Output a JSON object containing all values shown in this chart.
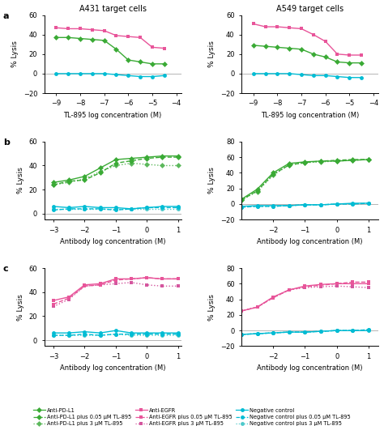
{
  "row_a_left": {
    "title": "A431 target cells",
    "xlabel": "TL-895 log concentration (M)",
    "ylabel": "% Lysis",
    "xlim": [
      -9.5,
      -3.8
    ],
    "ylim": [
      -20,
      60
    ],
    "xticks": [
      -9,
      -8,
      -7,
      -6,
      -5,
      -4
    ],
    "yticks": [
      -20,
      0,
      20,
      40,
      60
    ],
    "series": {
      "anti_egfr": {
        "x": [
          -9,
          -8.5,
          -8,
          -7.5,
          -7,
          -6.5,
          -6,
          -5.5,
          -5,
          -4.5
        ],
        "y": [
          47,
          46,
          46,
          45,
          44,
          39,
          38,
          37,
          27,
          26
        ],
        "color": "#e8559a",
        "marker": "s",
        "linestyle": "-"
      },
      "anti_pdl1": {
        "x": [
          -9,
          -8.5,
          -8,
          -7.5,
          -7,
          -6.5,
          -6,
          -5.5,
          -5,
          -4.5
        ],
        "y": [
          37,
          37,
          36,
          35,
          34,
          25,
          14,
          12,
          10,
          10
        ],
        "color": "#3aaa35",
        "marker": "D",
        "linestyle": "-"
      },
      "neg_ctrl": {
        "x": [
          -9,
          -8.5,
          -8,
          -7.5,
          -7,
          -6.5,
          -6,
          -5.5,
          -5,
          -4.5
        ],
        "y": [
          0,
          0,
          0,
          0,
          0,
          -1,
          -2,
          -3,
          -3,
          -2
        ],
        "color": "#00bcd4",
        "marker": "o",
        "linestyle": "-"
      }
    }
  },
  "row_a_right": {
    "title": "A549 target cells",
    "xlabel": "TL-895 log concentration (M)",
    "ylabel": "% Lysis",
    "xlim": [
      -9.5,
      -3.8
    ],
    "ylim": [
      -20,
      60
    ],
    "xticks": [
      -9,
      -8,
      -7,
      -6,
      -5,
      -4
    ],
    "yticks": [
      -20,
      0,
      20,
      40,
      60
    ],
    "series": {
      "anti_egfr": {
        "x": [
          -9,
          -8.5,
          -8,
          -7.5,
          -7,
          -6.5,
          -6,
          -5.5,
          -5,
          -4.5
        ],
        "y": [
          51,
          48,
          48,
          47,
          46,
          40,
          33,
          20,
          19,
          19
        ],
        "color": "#e8559a",
        "marker": "s",
        "linestyle": "-"
      },
      "anti_pdl1": {
        "x": [
          -9,
          -8.5,
          -8,
          -7.5,
          -7,
          -6.5,
          -6,
          -5.5,
          -5,
          -4.5
        ],
        "y": [
          29,
          28,
          27,
          26,
          25,
          20,
          17,
          12,
          11,
          11
        ],
        "color": "#3aaa35",
        "marker": "D",
        "linestyle": "-"
      },
      "neg_ctrl": {
        "x": [
          -9,
          -8.5,
          -8,
          -7.5,
          -7,
          -6.5,
          -6,
          -5.5,
          -5,
          -4.5
        ],
        "y": [
          0,
          0,
          0,
          0,
          -1,
          -2,
          -2,
          -3,
          -4,
          -4
        ],
        "color": "#00bcd4",
        "marker": "o",
        "linestyle": "-"
      }
    }
  },
  "row_b_left": {
    "xlabel": "Antibody log concentration (M)",
    "ylabel": "% Lysis",
    "xlim": [
      -3.3,
      1.1
    ],
    "ylim": [
      -5,
      60
    ],
    "xticks": [
      -3,
      -2,
      -1,
      0,
      1
    ],
    "yticks": [
      0,
      20,
      40,
      60
    ],
    "series": {
      "anti_pdl1": {
        "x": [
          -3,
          -2.5,
          -2,
          -1.5,
          -1,
          -0.5,
          0,
          0.5,
          1
        ],
        "y": [
          26,
          28,
          31,
          38,
          45,
          46,
          47,
          48,
          48
        ],
        "color": "#3aaa35",
        "marker": "D",
        "linestyle": "-"
      },
      "anti_pdl1_005": {
        "x": [
          -3,
          -2.5,
          -2,
          -1.5,
          -1,
          -0.5,
          0,
          0.5,
          1
        ],
        "y": [
          24,
          27,
          28,
          34,
          42,
          44,
          46,
          47,
          47
        ],
        "color": "#3aaa35",
        "marker": "D",
        "linestyle": "--"
      },
      "anti_pdl1_3": {
        "x": [
          -3,
          -2.5,
          -2,
          -1.5,
          -1,
          -0.5,
          0,
          0.5,
          1
        ],
        "y": [
          24,
          26,
          29,
          35,
          40,
          42,
          41,
          40,
          40
        ],
        "color": "#5cb85c",
        "marker": "D",
        "linestyle": ":"
      },
      "neg_ctrl": {
        "x": [
          -3,
          -2.5,
          -2,
          -1.5,
          -1,
          -0.5,
          0,
          0.5,
          1
        ],
        "y": [
          6,
          5,
          6,
          5,
          5,
          4,
          5,
          6,
          6
        ],
        "color": "#00bcd4",
        "marker": "o",
        "linestyle": "-"
      },
      "neg_ctrl_005": {
        "x": [
          -3,
          -2.5,
          -2,
          -1.5,
          -1,
          -0.5,
          0,
          0.5,
          1
        ],
        "y": [
          3,
          4,
          4,
          4,
          3,
          4,
          5,
          5,
          5
        ],
        "color": "#00bcd4",
        "marker": "o",
        "linestyle": "--"
      },
      "neg_ctrl_3": {
        "x": [
          -3,
          -2.5,
          -2,
          -1.5,
          -1,
          -0.5,
          0,
          0.5,
          1
        ],
        "y": [
          4,
          4,
          4,
          4,
          4,
          4,
          4,
          4,
          4
        ],
        "color": "#4ec9cb",
        "marker": "o",
        "linestyle": ":"
      }
    }
  },
  "row_b_right": {
    "xlabel": "Antibody log concentration (M)",
    "ylabel": "% Lysis",
    "xlim": [
      -3.0,
      1.3
    ],
    "ylim": [
      -20,
      80
    ],
    "xticks": [
      -2,
      -1,
      0,
      1
    ],
    "yticks": [
      -20,
      0,
      20,
      40,
      60,
      80
    ],
    "series": {
      "anti_pdl1": {
        "x": [
          -3,
          -2.5,
          -2,
          -1.5,
          -1,
          -0.5,
          0,
          0.5,
          1
        ],
        "y": [
          6,
          19,
          40,
          52,
          54,
          55,
          55,
          56,
          57
        ],
        "color": "#3aaa35",
        "marker": "D",
        "linestyle": "-"
      },
      "anti_pdl1_005": {
        "x": [
          -3,
          -2.5,
          -2,
          -1.5,
          -1,
          -0.5,
          0,
          0.5,
          1
        ],
        "y": [
          5,
          17,
          38,
          50,
          53,
          55,
          56,
          57,
          57
        ],
        "color": "#3aaa35",
        "marker": "D",
        "linestyle": "--"
      },
      "anti_pdl1_3": {
        "x": [
          -3,
          -2.5,
          -2,
          -1.5,
          -1,
          -0.5,
          0,
          0.5,
          1
        ],
        "y": [
          5,
          16,
          37,
          50,
          53,
          54,
          55,
          56,
          57
        ],
        "color": "#5cb85c",
        "marker": "D",
        "linestyle": ":"
      },
      "neg_ctrl": {
        "x": [
          -3,
          -2.5,
          -2,
          -1.5,
          -1,
          -0.5,
          0,
          0.5,
          1
        ],
        "y": [
          -3,
          -2,
          -2,
          -2,
          -1,
          -1,
          0,
          1,
          1
        ],
        "color": "#00bcd4",
        "marker": "o",
        "linestyle": "-"
      },
      "neg_ctrl_005": {
        "x": [
          -3,
          -2.5,
          -2,
          -1.5,
          -1,
          -0.5,
          0,
          0.5,
          1
        ],
        "y": [
          -4,
          -3,
          -3,
          -2,
          -1,
          -1,
          0,
          0,
          1
        ],
        "color": "#00bcd4",
        "marker": "o",
        "linestyle": "--"
      },
      "neg_ctrl_3": {
        "x": [
          -3,
          -2.5,
          -2,
          -1.5,
          -1,
          -0.5,
          0,
          0.5,
          1
        ],
        "y": [
          -4,
          -3,
          -3,
          -2,
          -1,
          -1,
          0,
          0,
          1
        ],
        "color": "#4ec9cb",
        "marker": "o",
        "linestyle": ":"
      }
    }
  },
  "row_c_left": {
    "xlabel": "Antibody log concentration (M)",
    "ylabel": "% Lysis",
    "xlim": [
      -3.3,
      1.1
    ],
    "ylim": [
      -5,
      60
    ],
    "xticks": [
      -3,
      -2,
      -1,
      0,
      1
    ],
    "yticks": [
      0,
      20,
      40,
      60
    ],
    "series": {
      "anti_egfr": {
        "x": [
          -3,
          -2.5,
          -2,
          -1.5,
          -1,
          -0.5,
          0,
          0.5,
          1
        ],
        "y": [
          33,
          36,
          46,
          47,
          51,
          51,
          52,
          51,
          51
        ],
        "color": "#e8559a",
        "marker": "s",
        "linestyle": "-"
      },
      "anti_egfr_005": {
        "x": [
          -3,
          -2.5,
          -2,
          -1.5,
          -1,
          -0.5,
          0,
          0.5,
          1
        ],
        "y": [
          30,
          35,
          45,
          46,
          50,
          51,
          52,
          51,
          51
        ],
        "color": "#e8559a",
        "marker": "s",
        "linestyle": "--"
      },
      "anti_egfr_3": {
        "x": [
          -3,
          -2.5,
          -2,
          -1.5,
          -1,
          -0.5,
          0,
          0.5,
          1
        ],
        "y": [
          28,
          34,
          45,
          46,
          47,
          48,
          46,
          45,
          45
        ],
        "color": "#d4569e",
        "marker": "s",
        "linestyle": ":"
      },
      "neg_ctrl": {
        "x": [
          -3,
          -2.5,
          -2,
          -1.5,
          -1,
          -0.5,
          0,
          0.5,
          1
        ],
        "y": [
          6,
          6,
          7,
          6,
          8,
          6,
          6,
          6,
          6
        ],
        "color": "#00bcd4",
        "marker": "o",
        "linestyle": "-"
      },
      "neg_ctrl_005": {
        "x": [
          -3,
          -2.5,
          -2,
          -1.5,
          -1,
          -0.5,
          0,
          0.5,
          1
        ],
        "y": [
          4,
          4,
          5,
          4,
          5,
          5,
          5,
          5,
          5
        ],
        "color": "#00bcd4",
        "marker": "o",
        "linestyle": "--"
      },
      "neg_ctrl_3": {
        "x": [
          -3,
          -2.5,
          -2,
          -1.5,
          -1,
          -0.5,
          0,
          0.5,
          1
        ],
        "y": [
          4,
          4,
          4,
          4,
          5,
          4,
          4,
          4,
          4
        ],
        "color": "#4ec9cb",
        "marker": "o",
        "linestyle": ":"
      }
    }
  },
  "row_c_right": {
    "xlabel": "Antibody log concentration (M)",
    "ylabel": "% Lysis",
    "xlim": [
      -3.0,
      1.3
    ],
    "ylim": [
      -20,
      80
    ],
    "xticks": [
      -2,
      -1,
      0,
      1
    ],
    "yticks": [
      -20,
      0,
      20,
      40,
      60,
      80
    ],
    "series": {
      "anti_egfr": {
        "x": [
          -3,
          -2.5,
          -2,
          -1.5,
          -1,
          -0.5,
          0,
          0.5,
          1
        ],
        "y": [
          25,
          30,
          43,
          52,
          57,
          59,
          60,
          60,
          60
        ],
        "color": "#e8559a",
        "marker": "s",
        "linestyle": "-"
      },
      "anti_egfr_005": {
        "x": [
          -3,
          -2.5,
          -2,
          -1.5,
          -1,
          -0.5,
          0,
          0.5,
          1
        ],
        "y": [
          25,
          30,
          42,
          52,
          56,
          58,
          60,
          62,
          62
        ],
        "color": "#e8559a",
        "marker": "s",
        "linestyle": "--"
      },
      "anti_egfr_3": {
        "x": [
          -3,
          -2.5,
          -2,
          -1.5,
          -1,
          -0.5,
          0,
          0.5,
          1
        ],
        "y": [
          25,
          30,
          42,
          52,
          55,
          56,
          57,
          56,
          55
        ],
        "color": "#d4569e",
        "marker": "s",
        "linestyle": ":"
      },
      "neg_ctrl": {
        "x": [
          -3,
          -2.5,
          -2,
          -1.5,
          -1,
          -0.5,
          0,
          0.5,
          1
        ],
        "y": [
          -5,
          -4,
          -3,
          -2,
          -2,
          -1,
          0,
          0,
          0
        ],
        "color": "#00bcd4",
        "marker": "o",
        "linestyle": "-"
      },
      "neg_ctrl_005": {
        "x": [
          -3,
          -2.5,
          -2,
          -1.5,
          -1,
          -0.5,
          0,
          0.5,
          1
        ],
        "y": [
          -5,
          -4,
          -3,
          -2,
          -2,
          -1,
          0,
          0,
          1
        ],
        "color": "#00bcd4",
        "marker": "o",
        "linestyle": "--"
      },
      "neg_ctrl_3": {
        "x": [
          -3,
          -2.5,
          -2,
          -1.5,
          -1,
          -0.5,
          0,
          0.5,
          1
        ],
        "y": [
          -5,
          -4,
          -3,
          -2,
          -2,
          -1,
          0,
          0,
          1
        ],
        "color": "#4ec9cb",
        "marker": "o",
        "linestyle": ":"
      }
    }
  },
  "legend": {
    "green_solid": {
      "label": "Anti-PD-L1",
      "color": "#3aaa35",
      "marker": "D",
      "linestyle": "-"
    },
    "green_dashed": {
      "label": "Anti-PD-L1 plus 0.05 μM TL-895",
      "color": "#3aaa35",
      "marker": "D",
      "linestyle": "--"
    },
    "green_dotted": {
      "label": "Anti-PD-L1 plus 3 μM TL-895",
      "color": "#5cb85c",
      "marker": "D",
      "linestyle": ":"
    },
    "pink_solid": {
      "label": "Anti-EGFR",
      "color": "#e8559a",
      "marker": "s",
      "linestyle": "-"
    },
    "pink_dashed": {
      "label": "Anti-EGFR plus 0.05 μM TL-895",
      "color": "#e8559a",
      "marker": "s",
      "linestyle": "--"
    },
    "pink_dotted": {
      "label": "Anti-EGFR plus 3 μM TL-895",
      "color": "#d4569e",
      "marker": "s",
      "linestyle": ":"
    },
    "cyan_solid": {
      "label": "Negative control",
      "color": "#00bcd4",
      "marker": "o",
      "linestyle": "-"
    },
    "cyan_dashed": {
      "label": "Negative control plus 0.05 μM TL-895",
      "color": "#00bcd4",
      "marker": "o",
      "linestyle": "--"
    },
    "cyan_dotted": {
      "label": "Negative control plus 3 μM TL-895",
      "color": "#4ec9cb",
      "marker": "o",
      "linestyle": ":"
    }
  },
  "bg_color": "#ffffff"
}
